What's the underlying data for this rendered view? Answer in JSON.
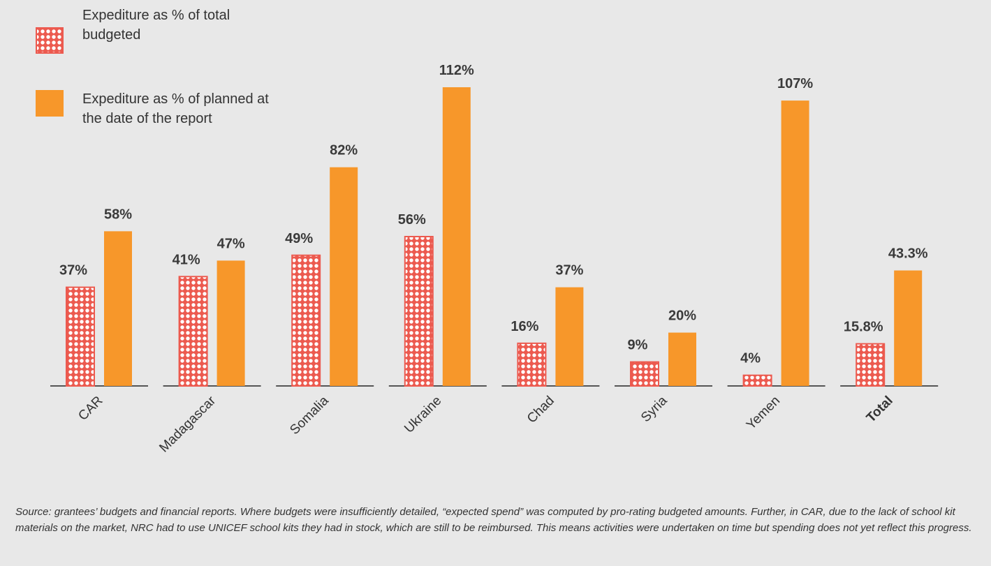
{
  "chart_data": {
    "type": "bar",
    "categories": [
      "CAR",
      "Madagascar",
      "Somalia",
      "Ukraine",
      "Chad",
      "Syria",
      "Yemen",
      "Total"
    ],
    "series": [
      {
        "name": "Expediture as % of total budgeted",
        "color": "#ec5a4f",
        "pattern": "dots",
        "values": [
          37,
          41,
          49,
          56,
          16,
          9,
          4,
          15.8
        ],
        "value_labels": [
          "37%",
          "41%",
          "49%",
          "56%",
          "16%",
          "9%",
          "4%",
          "15.8%"
        ]
      },
      {
        "name": "Expediture as % of planned at the date of the report",
        "color": "#f7972a",
        "values": [
          58,
          47,
          82,
          112,
          37,
          20,
          107,
          43.3
        ],
        "value_labels": [
          "58%",
          "47%",
          "82%",
          "112%",
          "37%",
          "20%",
          "107%",
          "43.3%"
        ]
      }
    ],
    "legend": "top-left",
    "note": "Source: grantees’ budgets and financial reports. Where budgets were insufficiently detailed, “expected spend” was computed by pro-rating budgeted amounts. Further, in CAR, due to the lack of school kit materials on the market, NRC had to use UNICEF school kits they had in stock, which are still to be reimbursed. This means activities were undertaken on time but spending does not yet reflect this progress."
  }
}
